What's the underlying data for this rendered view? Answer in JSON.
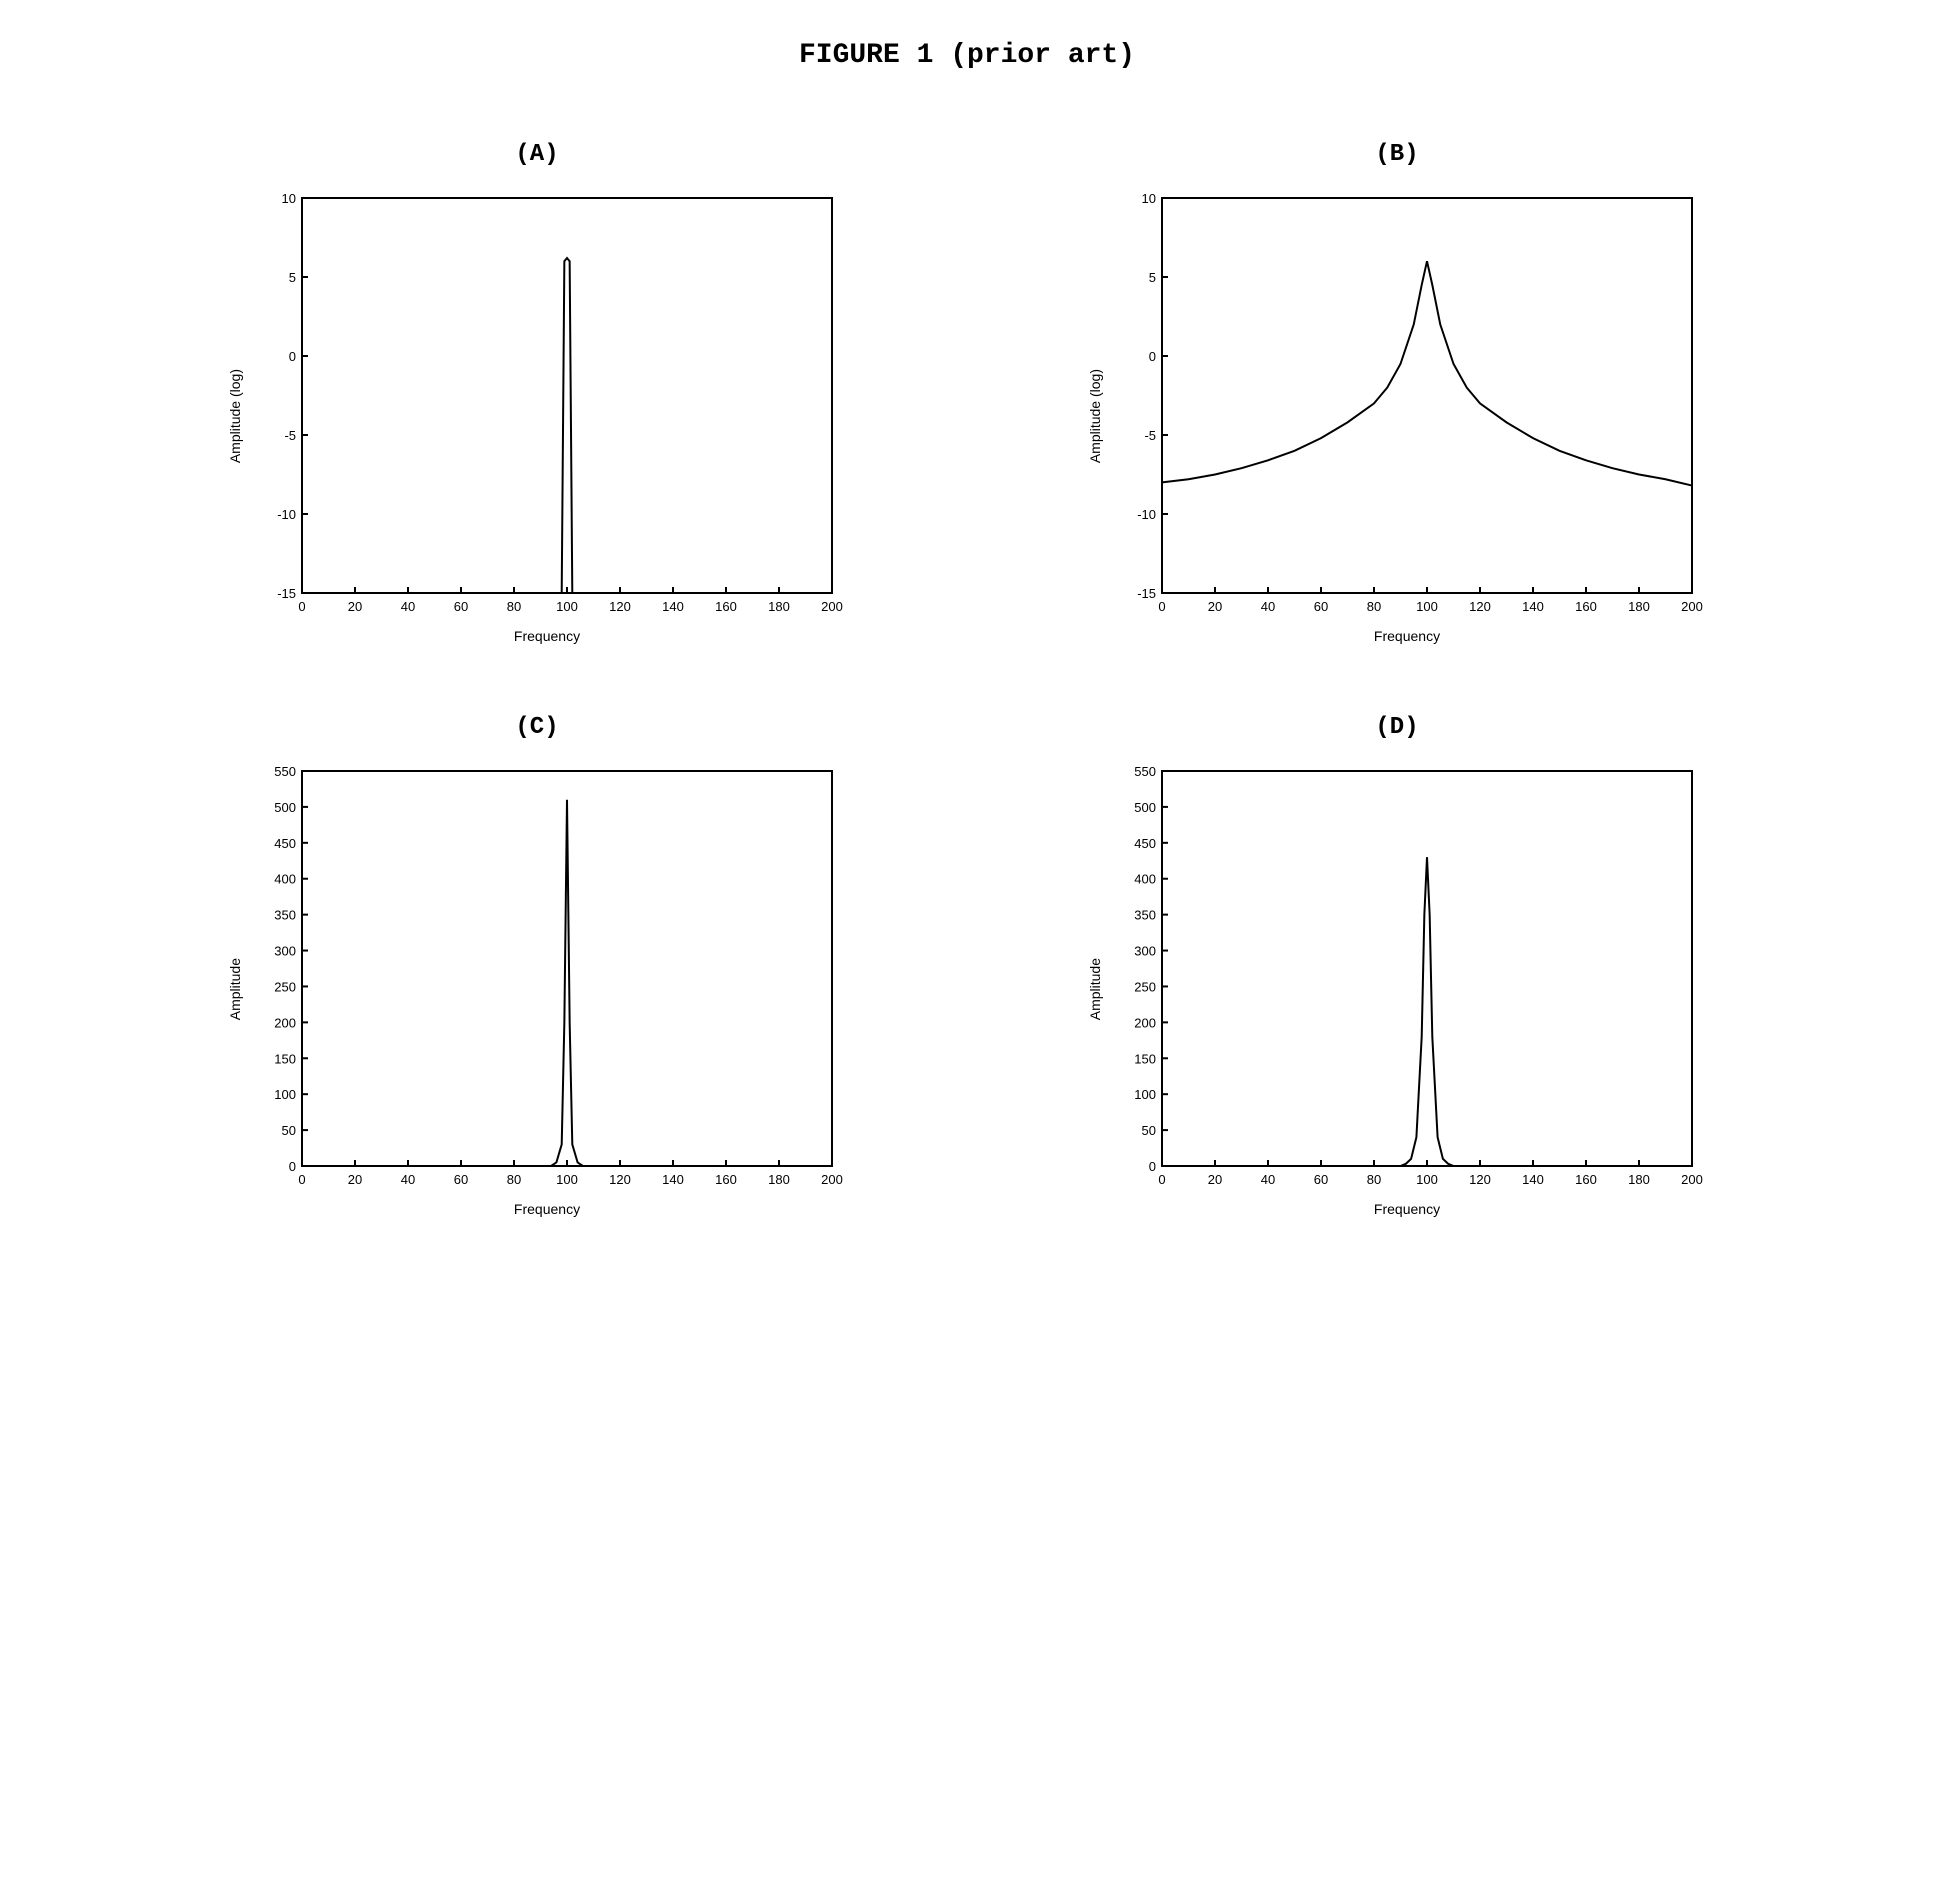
{
  "figure_title": "FIGURE 1 (prior art)",
  "panels": {
    "A": {
      "label": "(A)",
      "type": "line",
      "xlabel": "Frequency",
      "ylabel": "Amplitude (log)",
      "xlim": [
        0,
        200
      ],
      "ylim": [
        -15,
        10
      ],
      "xticks": [
        0,
        20,
        40,
        60,
        80,
        100,
        120,
        140,
        160,
        180,
        200
      ],
      "yticks": [
        -15,
        -10,
        -5,
        0,
        5,
        10
      ],
      "line_color": "#000000",
      "background_color": "#ffffff",
      "border_color": "#000000",
      "line_width": 2,
      "label_fontsize": 14,
      "tick_fontsize": 13,
      "data": [
        [
          0,
          -15
        ],
        [
          95,
          -15
        ],
        [
          98,
          -15
        ],
        [
          99,
          6
        ],
        [
          100,
          6.2
        ],
        [
          101,
          6
        ],
        [
          102,
          -15
        ],
        [
          105,
          -15
        ],
        [
          200,
          -15
        ]
      ]
    },
    "B": {
      "label": "(B)",
      "type": "line",
      "xlabel": "Frequency",
      "ylabel": "Amplitude (log)",
      "xlim": [
        0,
        200
      ],
      "ylim": [
        -15,
        10
      ],
      "xticks": [
        0,
        20,
        40,
        60,
        80,
        100,
        120,
        140,
        160,
        180,
        200
      ],
      "yticks": [
        -15,
        -10,
        -5,
        0,
        5,
        10
      ],
      "line_color": "#000000",
      "background_color": "#ffffff",
      "border_color": "#000000",
      "line_width": 2,
      "label_fontsize": 14,
      "tick_fontsize": 13,
      "data": [
        [
          0,
          -8
        ],
        [
          10,
          -7.8
        ],
        [
          20,
          -7.5
        ],
        [
          30,
          -7.1
        ],
        [
          40,
          -6.6
        ],
        [
          50,
          -6
        ],
        [
          60,
          -5.2
        ],
        [
          70,
          -4.2
        ],
        [
          80,
          -3
        ],
        [
          85,
          -2
        ],
        [
          90,
          -0.5
        ],
        [
          95,
          2
        ],
        [
          98,
          4.5
        ],
        [
          100,
          6
        ],
        [
          102,
          4.5
        ],
        [
          105,
          2
        ],
        [
          110,
          -0.5
        ],
        [
          115,
          -2
        ],
        [
          120,
          -3
        ],
        [
          130,
          -4.2
        ],
        [
          140,
          -5.2
        ],
        [
          150,
          -6
        ],
        [
          160,
          -6.6
        ],
        [
          170,
          -7.1
        ],
        [
          180,
          -7.5
        ],
        [
          190,
          -7.8
        ],
        [
          200,
          -8.2
        ]
      ]
    },
    "C": {
      "label": "(C)",
      "type": "line",
      "xlabel": "Frequency",
      "ylabel": "Amplitude",
      "xlim": [
        0,
        200
      ],
      "ylim": [
        0,
        550
      ],
      "xticks": [
        0,
        20,
        40,
        60,
        80,
        100,
        120,
        140,
        160,
        180,
        200
      ],
      "yticks": [
        0,
        50,
        100,
        150,
        200,
        250,
        300,
        350,
        400,
        450,
        500,
        550
      ],
      "line_color": "#000000",
      "background_color": "#ffffff",
      "border_color": "#000000",
      "line_width": 2,
      "label_fontsize": 14,
      "tick_fontsize": 13,
      "data": [
        [
          0,
          0
        ],
        [
          94,
          0
        ],
        [
          96,
          5
        ],
        [
          98,
          30
        ],
        [
          99,
          200
        ],
        [
          100,
          510
        ],
        [
          101,
          200
        ],
        [
          102,
          30
        ],
        [
          104,
          5
        ],
        [
          106,
          0
        ],
        [
          200,
          0
        ]
      ]
    },
    "D": {
      "label": "(D)",
      "type": "line",
      "xlabel": "Frequency",
      "ylabel": "Amplitude",
      "xlim": [
        0,
        200
      ],
      "ylim": [
        0,
        550
      ],
      "xticks": [
        0,
        20,
        40,
        60,
        80,
        100,
        120,
        140,
        160,
        180,
        200
      ],
      "yticks": [
        0,
        50,
        100,
        150,
        200,
        250,
        300,
        350,
        400,
        450,
        500,
        550
      ],
      "line_color": "#000000",
      "background_color": "#ffffff",
      "border_color": "#000000",
      "line_width": 2,
      "label_fontsize": 14,
      "tick_fontsize": 13,
      "data": [
        [
          0,
          0
        ],
        [
          90,
          0
        ],
        [
          92,
          3
        ],
        [
          94,
          10
        ],
        [
          96,
          40
        ],
        [
          98,
          180
        ],
        [
          99,
          350
        ],
        [
          100,
          430
        ],
        [
          101,
          350
        ],
        [
          102,
          180
        ],
        [
          104,
          40
        ],
        [
          106,
          10
        ],
        [
          108,
          3
        ],
        [
          110,
          0
        ],
        [
          200,
          0
        ]
      ]
    }
  },
  "layout": {
    "rows": 2,
    "cols": 2,
    "title_fontsize": 28,
    "panel_label_fontsize": 24,
    "font_family_title": "Courier New",
    "font_family_axis": "Arial"
  }
}
